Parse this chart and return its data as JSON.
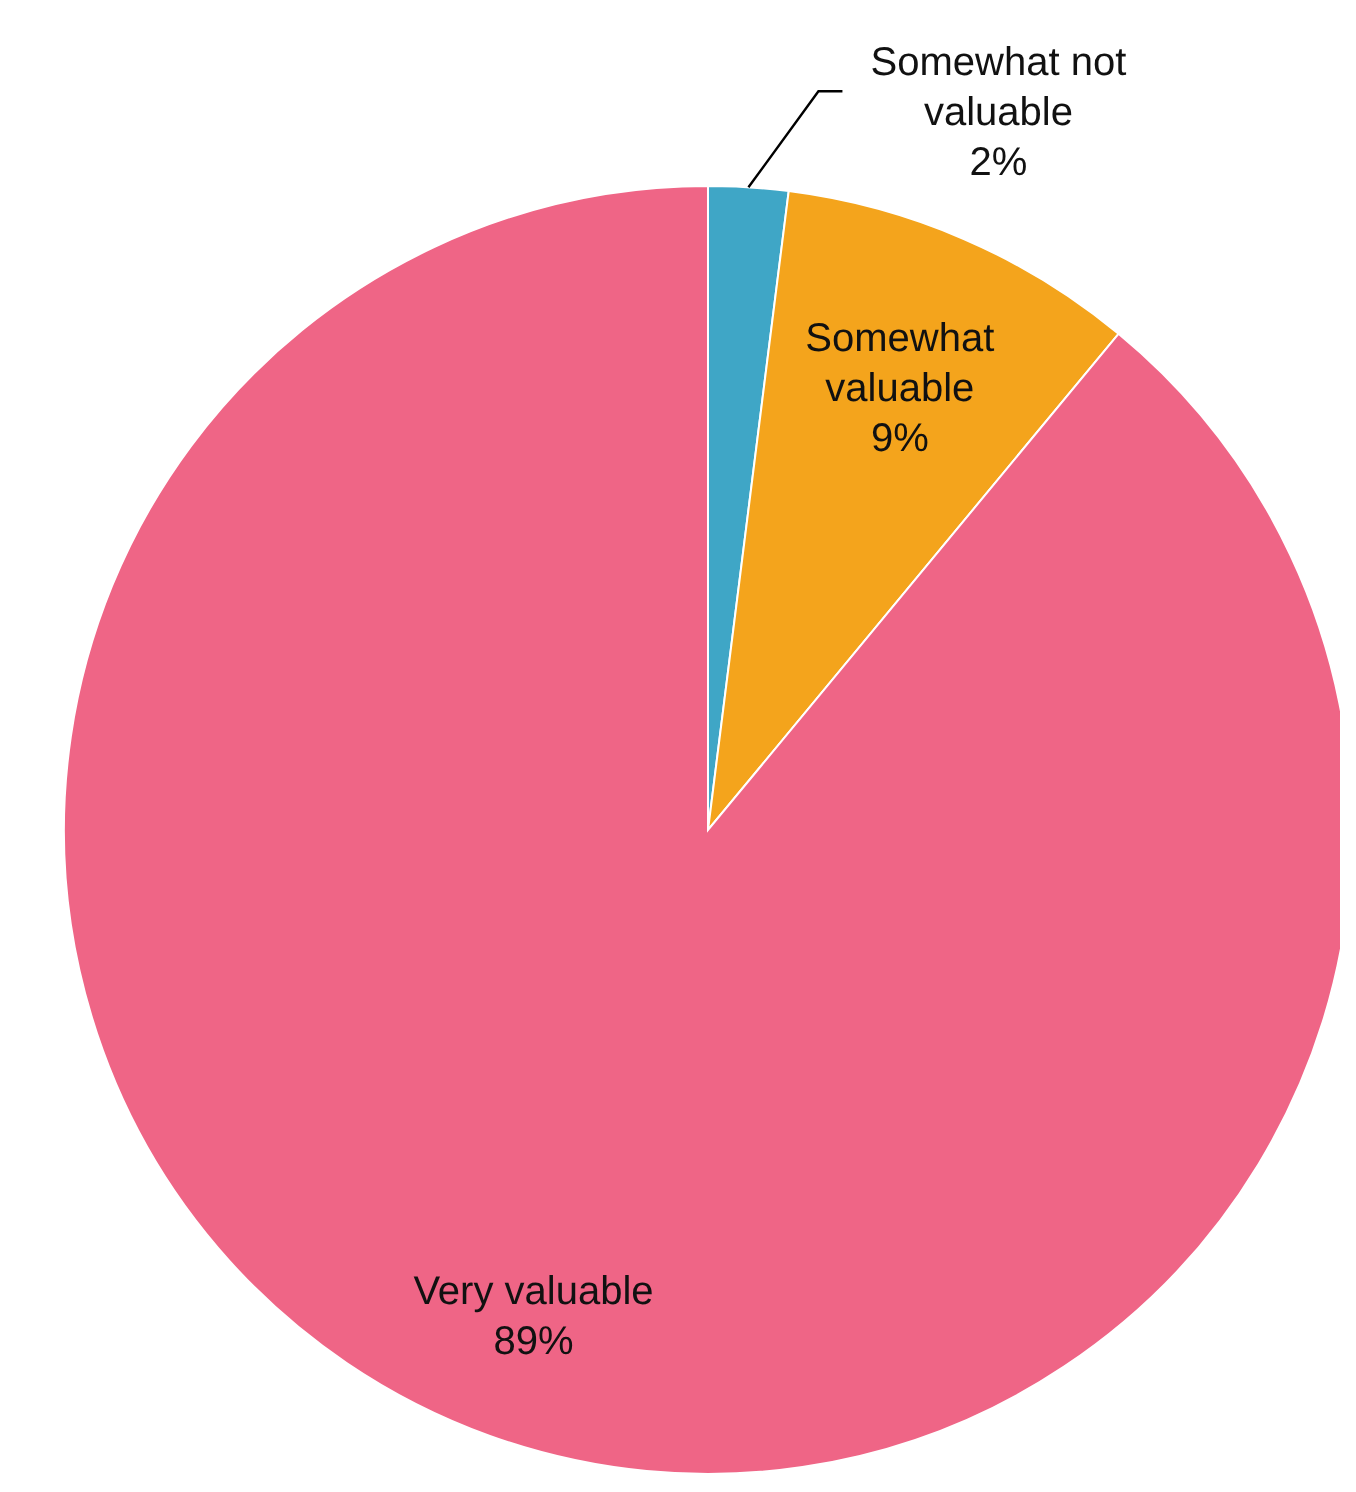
{
  "chart_data": {
    "type": "pie",
    "categories": [
      "Somewhat not valuable",
      "Somewhat valuable",
      "Very valuable"
    ],
    "values": [
      2,
      9,
      89
    ],
    "colors": [
      "#3fa6c6",
      "#f4a41c",
      "#ef6586"
    ],
    "value_labels": [
      "2%",
      "9%",
      "89%"
    ],
    "legend": false
  }
}
